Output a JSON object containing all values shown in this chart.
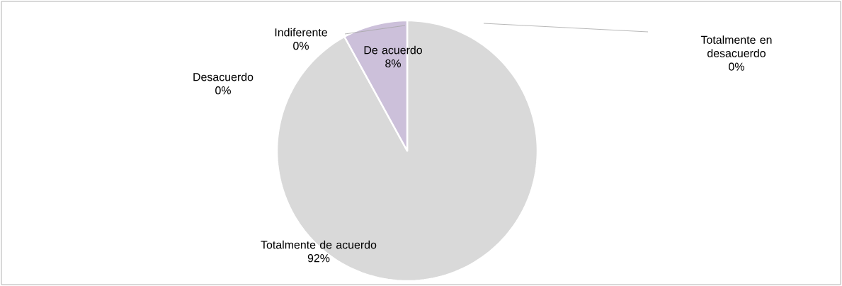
{
  "chart_data": {
    "type": "pie",
    "categories": [
      "Totalmente de acuerdo",
      "De acuerdo",
      "Indiferente",
      "Desacuerdo",
      "Totalmente en desacuerdo"
    ],
    "values": [
      92,
      8,
      0,
      0,
      0
    ],
    "colors": [
      "#d9d9d9",
      "#ccc0da",
      "#b7dee8",
      "#fcd5b5",
      "#c3d69b"
    ],
    "value_labels": [
      "92%",
      "8%",
      "0%",
      "0%",
      "0%"
    ]
  }
}
